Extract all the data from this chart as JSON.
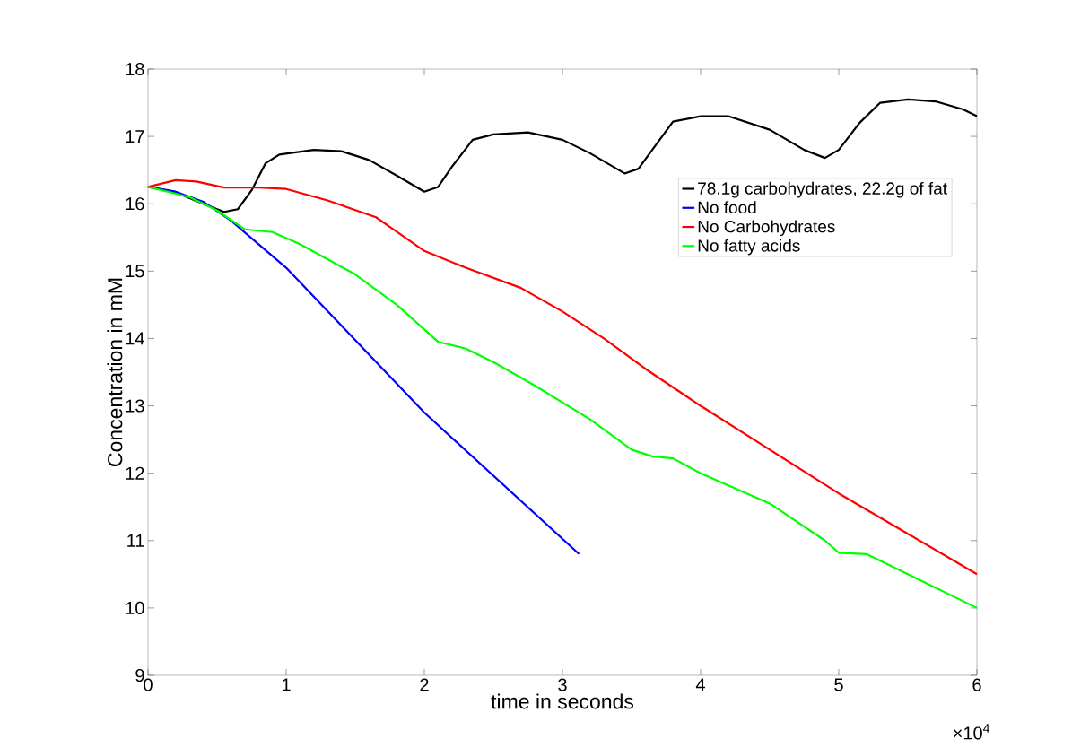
{
  "chart_data": {
    "type": "line",
    "xlabel": "time in seconds",
    "ylabel": "Concentration in mM",
    "annotations": [
      "×10$^{4}$"
    ],
    "xlim": [
      0,
      6
    ],
    "xticks": [
      0,
      1,
      2,
      3,
      4,
      5,
      6
    ],
    "ylim": [
      9,
      18
    ],
    "yticks": [
      9,
      10,
      11,
      12,
      13,
      14,
      15,
      16,
      17,
      18
    ],
    "grid": false,
    "legend": "top right",
    "marker": "none",
    "line_style": "solid",
    "series": [
      {
        "name": "78.1g carbohydrates, 22.2g of fat",
        "color": "#000000",
        "x": [
          0,
          0.2,
          0.4,
          0.55,
          0.65,
          0.75,
          0.85,
          0.95,
          1.2,
          1.4,
          1.6,
          1.8,
          2.0,
          2.1,
          2.2,
          2.35,
          2.5,
          2.75,
          3.0,
          3.2,
          3.45,
          3.55,
          3.65,
          3.8,
          4.0,
          4.2,
          4.5,
          4.75,
          4.9,
          5.0,
          5.15,
          5.3,
          5.5,
          5.7,
          5.9,
          6.0
        ],
        "values": [
          16.25,
          16.17,
          16.0,
          15.88,
          15.92,
          16.2,
          16.6,
          16.73,
          16.8,
          16.78,
          16.65,
          16.42,
          16.18,
          16.25,
          16.55,
          16.95,
          17.03,
          17.06,
          16.95,
          16.75,
          16.45,
          16.52,
          16.8,
          17.22,
          17.3,
          17.3,
          17.1,
          16.8,
          16.68,
          16.8,
          17.2,
          17.5,
          17.55,
          17.52,
          17.4,
          17.3
        ]
      },
      {
        "name": "No food",
        "color": "#0000ff",
        "x": [
          0,
          0.2,
          0.4,
          0.6,
          1.0,
          2.0,
          3.12
        ],
        "values": [
          16.25,
          16.18,
          16.03,
          15.75,
          15.05,
          12.9,
          10.8
        ]
      },
      {
        "name": "No Carbohydrates",
        "color": "#ff0000",
        "x": [
          0,
          0.2,
          0.35,
          0.55,
          0.8,
          1.0,
          1.3,
          1.65,
          2.0,
          2.3,
          2.7,
          3.0,
          3.3,
          3.6,
          4.0,
          4.5,
          5.0,
          5.5,
          6.0
        ],
        "values": [
          16.25,
          16.35,
          16.33,
          16.24,
          16.24,
          16.22,
          16.05,
          15.8,
          15.3,
          15.05,
          14.75,
          14.4,
          14.0,
          13.55,
          13.0,
          12.35,
          11.7,
          11.1,
          10.5
        ]
      },
      {
        "name": "No fatty acids",
        "color": "#00ff00",
        "x": [
          0,
          0.3,
          0.5,
          0.7,
          0.9,
          1.1,
          1.5,
          1.8,
          2.1,
          2.3,
          2.5,
          2.8,
          3.2,
          3.5,
          3.65,
          3.8,
          4.0,
          4.5,
          4.9,
          5.0,
          5.2,
          5.5,
          6.0
        ],
        "values": [
          16.25,
          16.1,
          15.9,
          15.62,
          15.58,
          15.4,
          14.95,
          14.5,
          13.95,
          13.85,
          13.65,
          13.3,
          12.8,
          12.35,
          12.25,
          12.22,
          12.0,
          11.55,
          11.0,
          10.82,
          10.8,
          10.5,
          10.0
        ]
      }
    ]
  }
}
